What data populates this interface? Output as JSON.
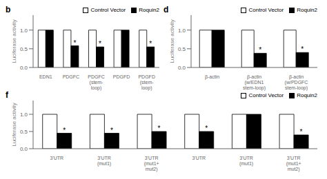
{
  "chart_data": [
    {
      "type": "bar",
      "title": "b",
      "categories": [
        "EDN1",
        "PDGFC",
        "PDGFC\n(stem-\nloop)",
        "PDGFD",
        "PDGFD\n(stem-\nloop)"
      ],
      "series": [
        {
          "name": "Control Vector",
          "color": "white",
          "values": [
            1.0,
            1.0,
            1.0,
            1.0,
            1.0
          ]
        },
        {
          "name": "Roquin2",
          "color": "black",
          "values": [
            1.0,
            0.58,
            0.55,
            1.0,
            0.55
          ]
        }
      ],
      "y_label": "Luciferase activity",
      "ylim": [
        0,
        1.4
      ],
      "yticks": [
        {
          "value": 0,
          "label": "0.0"
        },
        0.5,
        {
          "value": 1,
          "label": "1.0"
        }
      ],
      "annotations": [
        {
          "text": "*",
          "category_index": 1,
          "series": "Roquin2"
        },
        {
          "text": "*",
          "category_index": 2,
          "series": "Roquin2"
        },
        {
          "text": "*",
          "category_index": 4,
          "series": "Roquin2"
        }
      ],
      "legend": "upper right",
      "grid": false
    },
    {
      "type": "bar",
      "title": "d",
      "categories": [
        "β-actin",
        "β-actin\n(w/EDN1\nstem-loop)",
        "β-actin\n(w/PDGFC\nstem-loop)"
      ],
      "series": [
        {
          "name": "Control Vector",
          "color": "white",
          "values": [
            1.0,
            1.0,
            1.0
          ]
        },
        {
          "name": "Roquin2",
          "color": "black",
          "values": [
            1.0,
            0.38,
            0.4
          ]
        }
      ],
      "y_label": "Luciferase activity",
      "ylim": [
        0,
        1.4
      ],
      "yticks": [
        {
          "value": 0,
          "label": "0.0"
        },
        0.5,
        {
          "value": 1,
          "label": "1.0"
        }
      ],
      "annotations": [
        {
          "text": "*",
          "category_index": 1,
          "series": "Roquin2"
        },
        {
          "text": "*",
          "category_index": 2,
          "series": "Roquin2"
        }
      ],
      "legend": "upper right",
      "grid": false
    },
    {
      "type": "bar",
      "title": "f",
      "categories": [
        "3'UTR",
        "3'UTR\n(mut1)",
        "3'UTR\n(mut1+\nmut2)",
        "3'UTR",
        "3'UTR\n(mut1)",
        "3'UTR\n(mut1+\nmut2)"
      ],
      "series": [
        {
          "name": "Control Vector",
          "color": "white",
          "values": [
            1.0,
            1.0,
            1.0,
            1.0,
            1.0,
            1.0
          ]
        },
        {
          "name": "Roquin2",
          "color": "black",
          "values": [
            0.45,
            0.45,
            0.5,
            0.5,
            1.0,
            0.4
          ]
        }
      ],
      "y_label": "Luciferase activity",
      "ylim": [
        0,
        1.4
      ],
      "yticks": [
        {
          "value": 0,
          "label": "0.0"
        },
        0.5,
        {
          "value": 1,
          "label": "1.0"
        }
      ],
      "annotations": [
        {
          "text": "*",
          "category_index": 0,
          "series": "Roquin2"
        },
        {
          "text": "*",
          "category_index": 1,
          "series": "Roquin2"
        },
        {
          "text": "*",
          "category_index": 2,
          "series": "Roquin2"
        },
        {
          "text": "*",
          "category_index": 3,
          "series": "Roquin2"
        },
        {
          "text": "*",
          "category_index": 5,
          "series": "Roquin2"
        }
      ],
      "legend": "upper right",
      "grid": false
    }
  ]
}
